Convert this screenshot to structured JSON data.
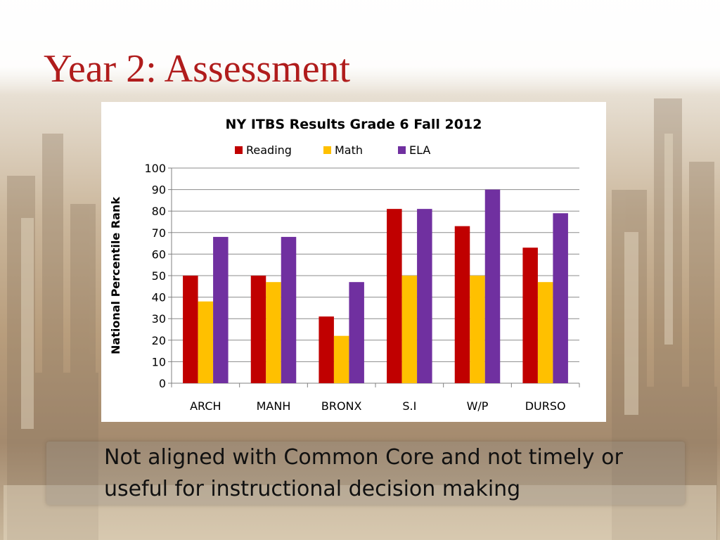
{
  "slide": {
    "title": "Year 2: Assessment",
    "caption": "Not aligned with Common Core and not timely or useful for instructional decision making"
  },
  "chart_data": {
    "type": "bar",
    "title": "NY ITBS Results Grade 6 Fall 2012",
    "xlabel": "",
    "ylabel": "National Percentile Rank",
    "ylim": [
      0,
      100
    ],
    "yticks": [
      0,
      10,
      20,
      30,
      40,
      50,
      60,
      70,
      80,
      90,
      100
    ],
    "grid": true,
    "legend_position": "top",
    "categories": [
      "ARCH",
      "MANH",
      "BRONX",
      "S.I",
      "W/P",
      "DURSO"
    ],
    "series": [
      {
        "name": "Reading",
        "color": "#c00000",
        "values": [
          50,
          50,
          31,
          81,
          73,
          63
        ]
      },
      {
        "name": "Math",
        "color": "#ffc000",
        "values": [
          38,
          47,
          22,
          50,
          50,
          47
        ]
      },
      {
        "name": "ELA",
        "color": "#7030a0",
        "values": [
          68,
          68,
          47,
          81,
          90,
          79
        ]
      }
    ]
  }
}
